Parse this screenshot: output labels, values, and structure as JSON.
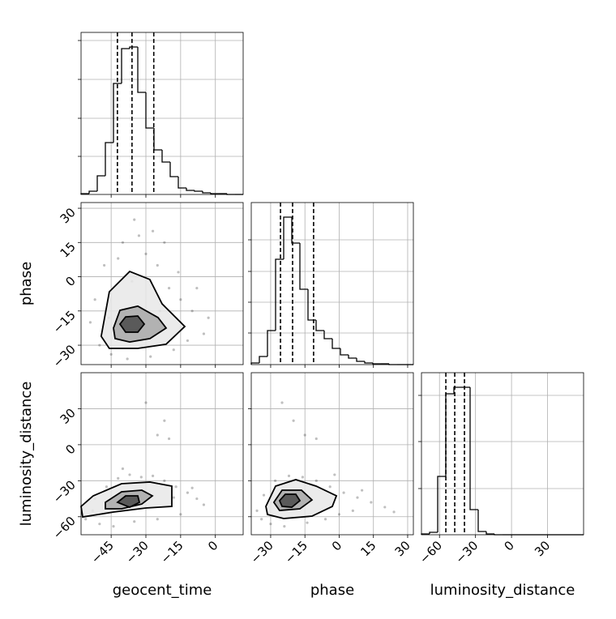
{
  "chart_data": {
    "type": "corner",
    "color": "#000000",
    "grid": true,
    "parameters": [
      {
        "label": "geocent_time",
        "lim": [
          -58,
          12
        ],
        "ticks": [
          {
            "value": -45,
            "label": "−45"
          },
          {
            "value": -30,
            "label": "−30"
          },
          {
            "value": -15,
            "label": "−15"
          },
          0
        ],
        "bins": [
          -58,
          -54.5,
          -51,
          -47.5,
          -44,
          -40.5,
          -37,
          -33.5,
          -30,
          -26.5,
          -23,
          -19.5,
          -16,
          -12.5,
          -9,
          -5.5,
          -2,
          1.5,
          5,
          8.5,
          12
        ],
        "counts": [
          1,
          4,
          23,
          64,
          137,
          180,
          182,
          126,
          82,
          55,
          40,
          22,
          8,
          5,
          4,
          2,
          1,
          1,
          0,
          0
        ],
        "hist_ylim": [
          0,
          200
        ],
        "hist_yticks": [
          47,
          94,
          142,
          190
        ],
        "quantiles": [
          -42.3,
          -36.0,
          -26.6
        ]
      },
      {
        "label": "phase",
        "lim": [
          -38.5,
          32.5
        ],
        "ticks": [
          {
            "value": -30,
            "label": "−30"
          },
          {
            "value": -15,
            "label": "−15"
          },
          0,
          15,
          30
        ],
        "bins": [
          -38.5,
          -34.95,
          -31.4,
          -27.85,
          -24.3,
          -20.75,
          -17.2,
          -13.65,
          -10.1,
          -6.55,
          -3,
          0.55,
          4.1,
          7.65,
          11.2,
          14.75,
          18.3,
          21.85,
          25.4,
          28.95,
          32.5
        ],
        "counts": [
          2,
          10,
          42,
          130,
          182,
          150,
          93,
          55,
          42,
          32,
          20,
          12,
          8,
          4,
          2,
          1,
          1,
          0,
          0,
          0
        ],
        "hist_ylim": [
          0,
          200
        ],
        "hist_yticks": [
          39,
          77,
          115,
          154
        ],
        "quantiles": [
          -25.7,
          -20.4,
          -11.2
        ]
      },
      {
        "label": "luminosity_distance",
        "lim": [
          -75,
          60
        ],
        "ticks": [
          {
            "value": -60,
            "label": "−60"
          },
          {
            "value": -30,
            "label": "−30"
          },
          0,
          30
        ],
        "bins": [
          -75,
          -68.25,
          -61.5,
          -54.75,
          -48,
          -41.25,
          -34.5,
          -27.75,
          -21,
          -14.25,
          -7.5,
          -0.75,
          6,
          12.75,
          19.5,
          26.25,
          33,
          39.75,
          46.5,
          53.25,
          60
        ],
        "counts": [
          1,
          3,
          72,
          174,
          182,
          182,
          31,
          4,
          1,
          0,
          0,
          0,
          0,
          0,
          0,
          0,
          0,
          0,
          0,
          0
        ],
        "hist_ylim": [
          0,
          200
        ],
        "hist_yticks": [
          57,
          115,
          172
        ],
        "quantiles": [
          -54.7,
          -47.3,
          -39.2
        ]
      }
    ],
    "pairs": [
      {
        "points": {
          "x": [
            -52,
            -48,
            -40,
            -35,
            -30,
            -25,
            -20,
            -15,
            -10,
            -5,
            -45,
            -38,
            -28,
            -18,
            -12,
            -8,
            -42,
            -33,
            -22,
            -54,
            -50,
            -27,
            -16,
            -3,
            -36,
            -24,
            -46
          ],
          "y": [
            -10,
            5,
            15,
            25,
            10,
            5,
            -5,
            -10,
            -15,
            -25,
            -34,
            -36,
            -35,
            -32,
            -28,
            -5,
            8,
            18,
            15,
            -20,
            -30,
            20,
            2,
            -18,
            -2,
            -15,
            -18
          ]
        },
        "contours": [
          {
            "x": [
              -49.3,
              -45.8,
              -37,
              -28.3,
              -23,
              -13.2,
              -21.3,
              -33.5,
              -45.8
            ],
            "y": [
              -26.1,
              -6.6,
              2.3,
              -1.2,
              -11.9,
              -21.8,
              -29.6,
              -31.4,
              -31.4
            ]
          },
          {
            "x": [
              -44,
              -41.2,
              -33.5,
              -24.75,
              -21.25,
              -28.25,
              -37,
              -43.3
            ],
            "y": [
              -22.5,
              -14.7,
              -12.9,
              -17.9,
              -22.5,
              -27.1,
              -28.6,
              -27.1
            ]
          },
          {
            "x": [
              -41.2,
              -38.75,
              -33.5,
              -30.7,
              -33.5,
              -38.75
            ],
            "y": [
              -20.75,
              -17.6,
              -17.2,
              -20.75,
              -24.3,
              -24.3
            ]
          }
        ]
      },
      {
        "points": {
          "x": [
            -56,
            -52,
            -47,
            -42,
            -37,
            -32,
            -27,
            -22,
            -17,
            -12,
            -8,
            -5,
            -50,
            -44,
            -35,
            -25,
            -15,
            -10,
            -30,
            -25,
            -20,
            -22,
            -40,
            -53,
            -18
          ],
          "y": [
            -62,
            -45,
            -35,
            -28,
            -25,
            -27,
            -26,
            -30,
            -35,
            -40,
            -45,
            -50,
            -66,
            -68,
            -64,
            -62,
            -58,
            -36,
            35,
            8,
            5,
            20,
            -20,
            -55,
            -44
          ]
        },
        "contours": [
          {
            "x": [
              -58,
              -52.75,
              -40.5,
              -28.25,
              -18.8,
              -18.8,
              -30,
              -44,
              -57.3
            ],
            "y": [
              -51.4,
              -42.6,
              -32.5,
              -31.1,
              -34.5,
              -51.4,
              -52.7,
              -56.1,
              -60.2
            ]
          },
          {
            "x": [
              -47.5,
              -40.5,
              -31.75,
              -27.2,
              -31.75,
              -40.5,
              -47.5
            ],
            "y": [
              -48,
              -39.2,
              -37.9,
              -42.6,
              -49.4,
              -53.4,
              -53.4
            ]
          },
          {
            "x": [
              -42.25,
              -38.75,
              -33.5,
              -32.8,
              -37
            ],
            "y": [
              -48,
              -42.6,
              -42.6,
              -48,
              -52.1
            ]
          }
        ]
      },
      {
        "points": {
          "x": [
            -36,
            -33,
            -28,
            -22,
            -16,
            -10,
            -4,
            2,
            8,
            14,
            20,
            24,
            -30,
            -24,
            -14,
            -6,
            0,
            6,
            -20,
            -15,
            -10,
            -25,
            -34,
            -2,
            10
          ],
          "y": [
            -55,
            -42,
            -30,
            -26,
            -27,
            -30,
            -35,
            -40,
            -44,
            -48,
            -52,
            -56,
            -66,
            -68,
            -65,
            -62,
            -58,
            -55,
            20,
            8,
            5,
            35,
            -62,
            -25,
            -38
          ]
        },
        "contours": [
          {
            "x": [
              -32.1,
              -27.85,
              -19,
              -10.1,
              -1.2,
              -3,
              -11.9,
              -24.3,
              -31.4
            ],
            "y": [
              -51.4,
              -34.5,
              -29.1,
              -34.5,
              -42.6,
              -51.4,
              -59.5,
              -61.5,
              -58.1
            ]
          },
          {
            "x": [
              -28.6,
              -25,
              -16.5,
              -11.9,
              -17.2,
              -26.1
            ],
            "y": [
              -48,
              -37.9,
              -37.9,
              -46,
              -53.4,
              -54.8
            ]
          },
          {
            "x": [
              -26.1,
              -23.6,
              -19,
              -17.2,
              -20.75,
              -25
            ],
            "y": [
              -46.6,
              -41.25,
              -41.25,
              -46.6,
              -52.1,
              -51.4
            ]
          }
        ]
      }
    ]
  }
}
